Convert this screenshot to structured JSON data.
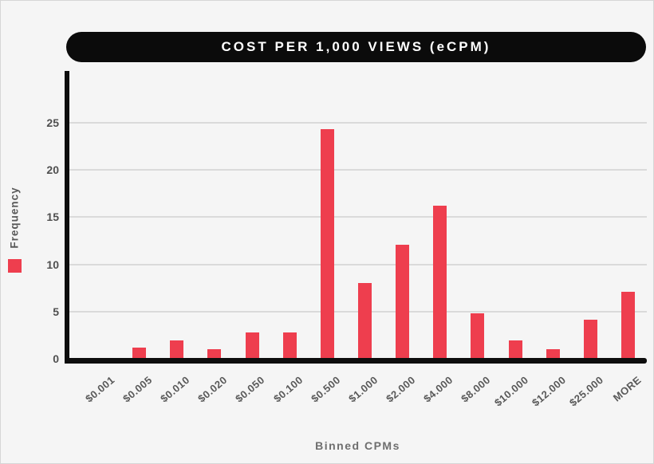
{
  "chart_data": {
    "type": "bar",
    "title": "COST PER 1,000 VIEWS (eCPM)",
    "xlabel": "Binned CPMs",
    "ylabel": "Frequency",
    "series_name": "Frequency",
    "categories": [
      "$0.001",
      "$0.005",
      "$0.010",
      "$0.020",
      "$0.050",
      "$0.100",
      "$0.500",
      "$1.000",
      "$2.000",
      "$4.000",
      "$8.000",
      "$10.000",
      "$12.000",
      "$25.000",
      "MORE"
    ],
    "values": [
      0,
      1.2,
      1.9,
      1.0,
      2.8,
      2.8,
      24.3,
      8.0,
      12.1,
      16.2,
      4.8,
      1.9,
      1.0,
      4.1,
      7.1
    ],
    "yticks": [
      0,
      5,
      10,
      15,
      20,
      25
    ],
    "ylim": [
      0,
      30.3
    ],
    "grid": true,
    "legend_position": "left",
    "colors": {
      "bar": "#ee3e4e",
      "banner_bg": "#0b0b0b",
      "banner_text": "#ffffff",
      "grid": "#dadada",
      "axis": "#0d0d0d",
      "tick_text": "#4f4f4f",
      "axis_title_text": "#6e6e6e",
      "background": "#f5f5f5"
    }
  }
}
